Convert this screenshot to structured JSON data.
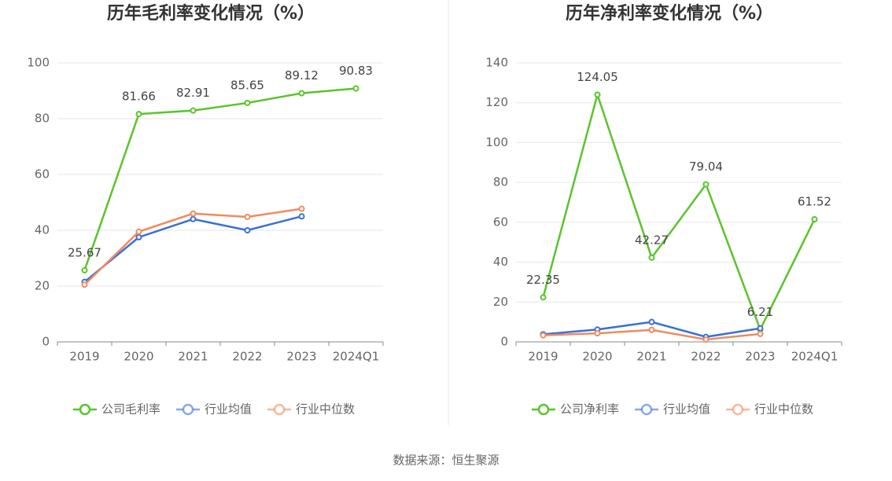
{
  "chart_data": [
    {
      "type": "line",
      "title": "历年毛利率变化情况（%）",
      "categories": [
        "2019",
        "2020",
        "2021",
        "2022",
        "2023",
        "2024Q1"
      ],
      "series": [
        {
          "name": "公司毛利率",
          "color": "#5ac42b",
          "values": [
            25.67,
            81.66,
            82.91,
            85.65,
            89.12,
            90.83
          ]
        },
        {
          "name": "行业均值",
          "color": "#3a6fd8",
          "values": [
            21.5,
            37.5,
            44,
            40,
            45,
            null
          ]
        },
        {
          "name": "行业中位数",
          "color": "#f08a5d",
          "values": [
            20.5,
            39.5,
            46,
            44.8,
            47.7,
            null
          ]
        }
      ],
      "ylim": [
        0,
        100
      ],
      "yticks": [
        0,
        20,
        40,
        60,
        80,
        100
      ],
      "grid": true,
      "labeled_series": 0
    },
    {
      "type": "line",
      "title": "历年净利率变化情况（%）",
      "categories": [
        "2019",
        "2020",
        "2021",
        "2022",
        "2023",
        "2024Q1"
      ],
      "series": [
        {
          "name": "公司净利率",
          "color": "#5ac42b",
          "values": [
            22.35,
            124.05,
            42.27,
            79.04,
            6.21,
            61.52
          ]
        },
        {
          "name": "行业均值",
          "color": "#3a6fd8",
          "values": [
            3.8,
            6.2,
            10,
            2.5,
            6.8,
            null
          ]
        },
        {
          "name": "行业中位数",
          "color": "#f08a5d",
          "values": [
            3.3,
            4.3,
            6,
            1.2,
            4,
            null
          ]
        }
      ],
      "ylim": [
        0,
        140
      ],
      "yticks": [
        0,
        20,
        40,
        60,
        80,
        100,
        120,
        140
      ],
      "grid": true,
      "labeled_series": 0
    }
  ],
  "source": "数据来源：恒生聚源"
}
